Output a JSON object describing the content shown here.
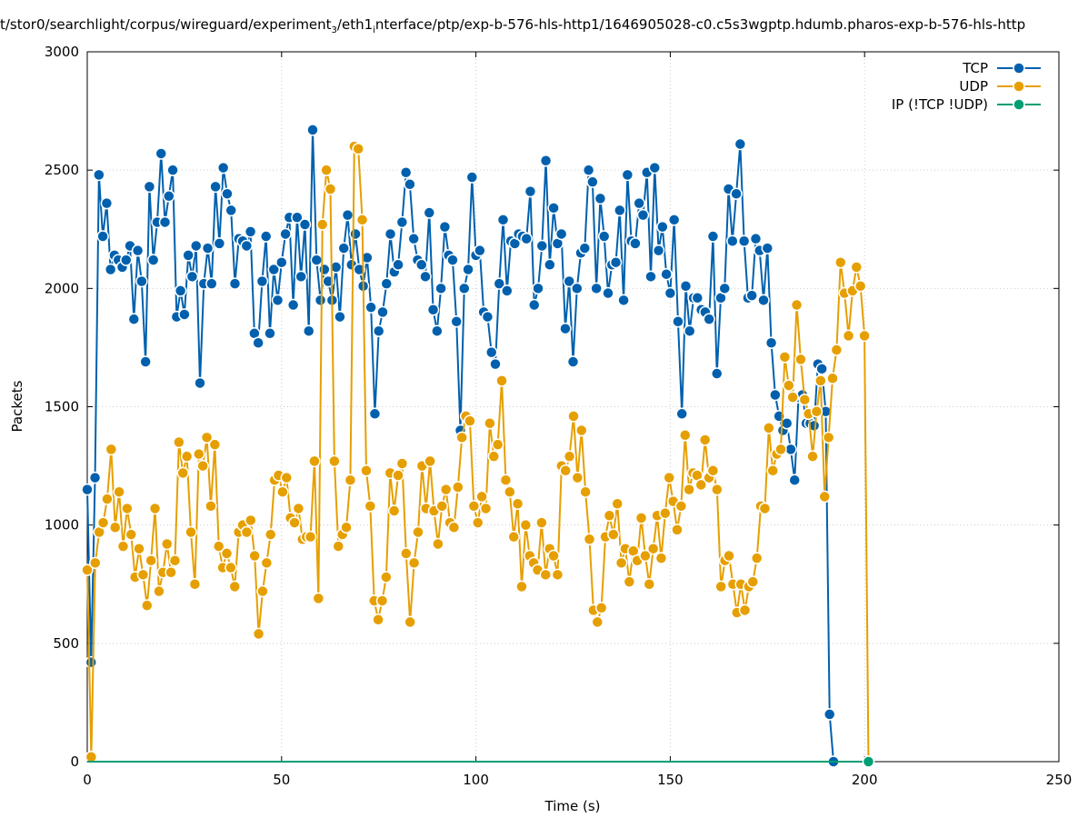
{
  "chart_data": {
    "type": "line",
    "title_parts": [
      "t/stor0/searchlight/corpus/wireguard/experiment",
      "3",
      "/eth1",
      "i",
      "nterface/ptp/exp-b-576-hls-http1/1646905028-c0.c5s3wgptp.hdumb.pharos-exp-b-576-hls-http"
    ],
    "xlabel": "Time (s)",
    "ylabel": "Packets",
    "xlim": [
      0,
      250
    ],
    "ylim": [
      0,
      3000
    ],
    "xticks": [
      0,
      50,
      100,
      150,
      200,
      250
    ],
    "yticks": [
      0,
      500,
      1000,
      1500,
      2000,
      2500,
      3000
    ],
    "grid": true,
    "legend_position": "top-right",
    "series": [
      {
        "name": "TCP",
        "color": "#0060ad",
        "x_start": 0,
        "x_step": 1,
        "values": [
          1150,
          420,
          1200,
          2480,
          2220,
          2360,
          2080,
          2140,
          2120,
          2090,
          2120,
          2180,
          1870,
          2160,
          2030,
          1690,
          2430,
          2120,
          2280,
          2570,
          2280,
          2390,
          2500,
          1880,
          1990,
          1890,
          2140,
          2050,
          2180,
          1600,
          2020,
          2170,
          2020,
          2430,
          2190,
          2510,
          2400,
          2330,
          2020,
          2210,
          2200,
          2180,
          2240,
          1810,
          1770,
          2030,
          2220,
          1810,
          2080,
          1950,
          2110,
          2230,
          2300,
          1930,
          2300,
          2050,
          2270,
          1820,
          2670,
          2120,
          1950,
          2080,
          2030,
          1950,
          2090,
          1880,
          2170,
          2310,
          2100,
          2230,
          2080,
          2010,
          2130,
          1920,
          1470,
          1820,
          1900,
          2020,
          2230,
          2070,
          2100,
          2280,
          2490,
          2440,
          2210,
          2120,
          2100,
          2050,
          2320,
          1910,
          1820,
          2000,
          2260,
          2140,
          2120,
          1860,
          1400,
          2000,
          2080,
          2470,
          2140,
          2160,
          1900,
          1880,
          1730,
          1680,
          2020,
          2290,
          1990,
          2200,
          2190,
          2230,
          2220,
          2210,
          2410,
          1930,
          2000,
          2180,
          2540,
          2100,
          2340,
          2190,
          2230,
          1830,
          2030,
          1690,
          2000,
          2150,
          2170,
          2500,
          2450,
          2000,
          2380,
          2220,
          1980,
          2100,
          2110,
          2330,
          1950,
          2480,
          2200,
          2190,
          2360,
          2310,
          2490,
          2050,
          2510,
          2160,
          2260,
          2060,
          1980,
          2290,
          1860,
          1470,
          2010,
          1820,
          1960,
          1960,
          1910,
          1900,
          1870,
          2220,
          1640,
          1960,
          2000,
          2420,
          2200,
          2400,
          2610,
          2200,
          1960,
          1970,
          2210,
          2160,
          1950,
          2170,
          1770,
          1550,
          1460,
          1400,
          1430,
          1320,
          1190,
          1540,
          1550,
          1430,
          1430,
          1420,
          1680,
          1660,
          1480,
          200,
          0
        ]
      },
      {
        "name": "UDP",
        "color": "#e69f00",
        "x_start": 0,
        "x_step": 1.0255,
        "values": [
          810,
          20,
          840,
          970,
          1010,
          1110,
          1320,
          990,
          1140,
          910,
          1070,
          960,
          780,
          900,
          790,
          660,
          850,
          1070,
          720,
          800,
          920,
          800,
          850,
          1350,
          1220,
          1290,
          970,
          750,
          1300,
          1250,
          1370,
          1080,
          1340,
          910,
          820,
          880,
          820,
          740,
          970,
          1000,
          970,
          1020,
          870,
          540,
          720,
          840,
          960,
          1190,
          1210,
          1140,
          1200,
          1030,
          1010,
          1070,
          940,
          950,
          950,
          1270,
          690,
          2270,
          2500,
          2420,
          1270,
          910,
          960,
          990,
          1190,
          2600,
          2590,
          2290,
          1230,
          1080,
          680,
          600,
          680,
          780,
          1220,
          1060,
          1210,
          1260,
          880,
          590,
          840,
          970,
          1250,
          1070,
          1270,
          1060,
          920,
          1080,
          1150,
          1010,
          990,
          1160,
          1370,
          1460,
          1440,
          1080,
          1010,
          1120,
          1070,
          1430,
          1290,
          1340,
          1610,
          1190,
          1140,
          950,
          1090,
          740,
          1000,
          870,
          840,
          810,
          1010,
          790,
          900,
          870,
          790,
          1250,
          1230,
          1290,
          1460,
          1200,
          1400,
          1140,
          940,
          640,
          590,
          650,
          950,
          1040,
          960,
          1090,
          840,
          900,
          760,
          890,
          850,
          1030,
          870,
          750,
          900,
          1040,
          860,
          1050,
          1200,
          1100,
          980,
          1080,
          1380,
          1150,
          1220,
          1210,
          1170,
          1360,
          1200,
          1230,
          1150,
          740,
          850,
          870,
          750,
          630,
          750,
          640,
          740,
          760,
          860,
          1080,
          1070,
          1410,
          1230,
          1300,
          1320,
          1710,
          1590,
          1540,
          1930,
          1700,
          1530,
          1470,
          1290,
          1480,
          1610,
          1120,
          1370,
          1620,
          1740,
          2110,
          1980,
          1800,
          1990,
          2090,
          2010,
          1800,
          0
        ]
      },
      {
        "name": "IP (!TCP  !UDP)",
        "color": "#009e73",
        "x": [
          0,
          201
        ],
        "values": [
          0,
          0
        ]
      }
    ]
  }
}
